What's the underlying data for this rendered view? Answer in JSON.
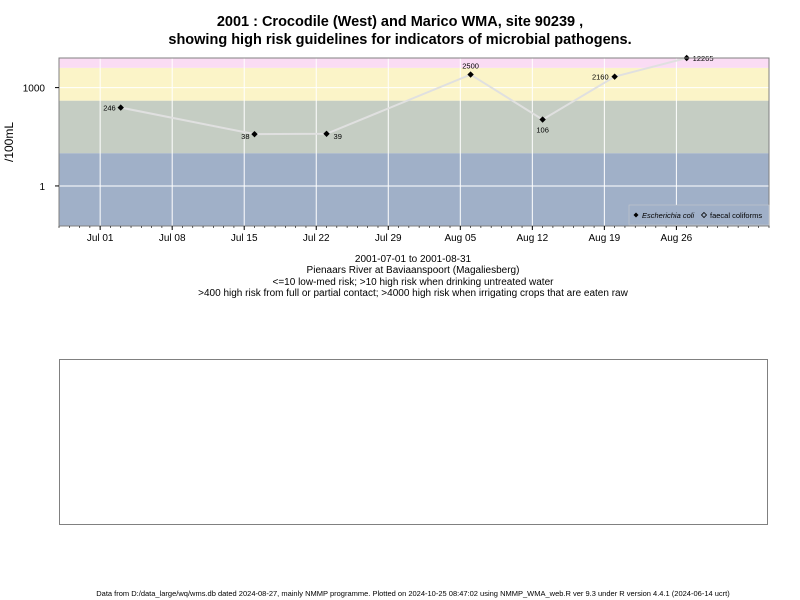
{
  "chart_data": {
    "type": "scatter",
    "title": "2001 : Crocodile (West) and Marico WMA, site 90239 ,",
    "subtitle": "showing high risk guidelines for indicators of microbial pathogens.",
    "ylabel": "/100mL",
    "y_scale": "log10",
    "ylim": [
      0.06,
      8000
    ],
    "xlim": [
      "2001-06-27",
      "2001-09-04"
    ],
    "x_ticks": [
      {
        "date": "2001-07-01",
        "label": "Jul 01"
      },
      {
        "date": "2001-07-08",
        "label": "Jul 08"
      },
      {
        "date": "2001-07-15",
        "label": "Jul 15"
      },
      {
        "date": "2001-07-22",
        "label": "Jul 22"
      },
      {
        "date": "2001-07-29",
        "label": "Jul 29"
      },
      {
        "date": "2001-08-05",
        "label": "Aug 05"
      },
      {
        "date": "2001-08-12",
        "label": "Aug 12"
      },
      {
        "date": "2001-08-19",
        "label": "Aug 19"
      },
      {
        "date": "2001-08-26",
        "label": "Aug 26"
      }
    ],
    "y_ticks": [
      {
        "value": 1,
        "label": "1"
      },
      {
        "value": 1000,
        "label": "1000"
      }
    ],
    "risk_bands": [
      {
        "from": 0.06,
        "to": 10,
        "color": "#a0b0c8"
      },
      {
        "from": 10,
        "to": 400,
        "color": "#c5cdc3"
      },
      {
        "from": 400,
        "to": 4000,
        "color": "#fbf4c8"
      },
      {
        "from": 4000,
        "to": 8000,
        "color": "#fadcf4"
      }
    ],
    "grid": true,
    "series": [
      {
        "name": "Escherichia coli",
        "marker": "filled-diamond",
        "color": "#000000",
        "line_color": "#e0e0e0",
        "points": [
          {
            "x": "2001-07-03",
            "y": 246,
            "label": "246"
          },
          {
            "x": "2001-07-16",
            "y": 38,
            "label": "38"
          },
          {
            "x": "2001-07-23",
            "y": 39,
            "label": "39"
          },
          {
            "x": "2001-08-06",
            "y": 2500,
            "label": "2500"
          },
          {
            "x": "2001-08-13",
            "y": 106,
            "label": "106"
          },
          {
            "x": "2001-08-20",
            "y": 2160,
            "label": "2160"
          },
          {
            "x": "2001-08-27",
            "y": 12265,
            "label": "12265"
          }
        ]
      },
      {
        "name": "faecal coliforms",
        "marker": "open-diamond",
        "color": "#000000",
        "points": []
      }
    ],
    "legend_position": "bottom-right"
  },
  "captions": {
    "period": "2001-07-01 to 2001-08-31",
    "site": "Pienaars River at Baviaanspoort (Magaliesberg)",
    "guideline1": "<=10 low-med risk; >10 high risk when drinking untreated water",
    "guideline2": ">400 high risk from full or partial contact; >4000 high risk when irrigating crops that are eaten raw"
  },
  "footer": "Data from D:/data_large/wq/wms.db dated 2024-08-27, mainly NMMP programme. Plotted on 2024-10-25 08:47:02 using NMMP_WMA_web.R ver 9.3 under R version 4.4.1 (2024-06-14 ucrt)"
}
